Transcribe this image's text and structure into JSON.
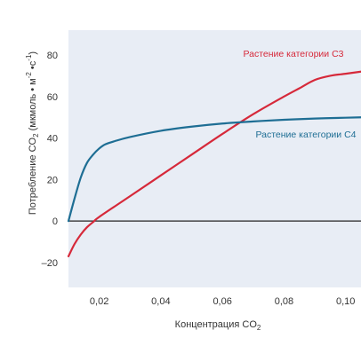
{
  "chart_data": {
    "type": "line",
    "xlabel": {
      "text": "Концентрация CO",
      "sub": "2"
    },
    "ylabel": {
      "part1": "Потребление CO",
      "sub1": "2",
      "part2": " (мкмоль • м",
      "sup1": "-2",
      "part3": " •с",
      "sup2": "-1",
      "part4": ")"
    },
    "xlim": [
      0.01,
      0.105
    ],
    "ylim": [
      -32,
      92
    ],
    "xticks": [
      {
        "value": 0.02,
        "label": "0,02"
      },
      {
        "value": 0.04,
        "label": "0,04"
      },
      {
        "value": 0.06,
        "label": "0,06"
      },
      {
        "value": 0.08,
        "label": "0,08"
      },
      {
        "value": 0.1,
        "label": "0,10"
      }
    ],
    "yticks": [
      {
        "value": -20,
        "label": "–20"
      },
      {
        "value": 0,
        "label": "0"
      },
      {
        "value": 20,
        "label": "20"
      },
      {
        "value": 40,
        "label": "40"
      },
      {
        "value": 60,
        "label": "60"
      },
      {
        "value": 80,
        "label": "80"
      }
    ],
    "zero_line": true,
    "background": "#e8edf5",
    "series": [
      {
        "name": "Растение категории C3",
        "color": "#d6293a",
        "x": [
          0.01,
          0.012,
          0.014,
          0.016,
          0.018,
          0.02,
          0.03,
          0.04,
          0.05,
          0.06,
          0.07,
          0.08,
          0.085,
          0.09,
          0.095,
          0.1,
          0.105
        ],
        "y": [
          -17,
          -11,
          -6.5,
          -3,
          -0.5,
          2,
          12,
          22,
          32,
          42,
          51.5,
          60,
          64,
          68,
          70,
          71,
          72
        ]
      },
      {
        "name": "Растение категории C4",
        "color": "#1e6e94",
        "x": [
          0.01,
          0.012,
          0.014,
          0.016,
          0.018,
          0.02,
          0.022,
          0.025,
          0.03,
          0.04,
          0.05,
          0.06,
          0.07,
          0.08,
          0.09,
          0.1,
          0.105
        ],
        "y": [
          0,
          11,
          21,
          28,
          32,
          35,
          37,
          38.5,
          40.5,
          43.5,
          45.5,
          47,
          48,
          48.8,
          49.4,
          49.8,
          50
        ]
      }
    ]
  }
}
